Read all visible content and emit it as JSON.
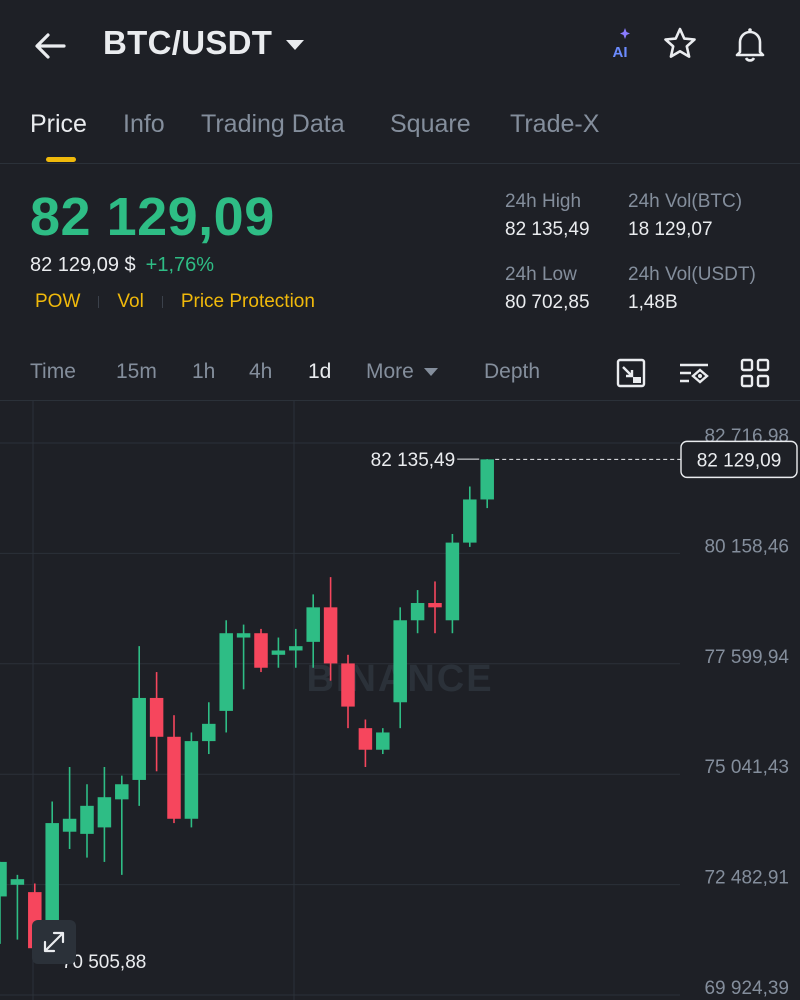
{
  "header": {
    "pair": "BTC/USDT",
    "ai_label": "AI"
  },
  "tabs": [
    "Price",
    "Info",
    "Trading Data",
    "Square",
    "Trade-X"
  ],
  "price": {
    "last": "82 129,09",
    "usd": "82 129,09 $",
    "change": "+1,76%"
  },
  "badges": [
    "POW",
    "Vol",
    "Price Protection"
  ],
  "stats": {
    "high_label": "24h High",
    "high_value": "82 135,49",
    "vol_btc_label": "24h Vol(BTC)",
    "vol_btc_value": "18 129,07",
    "low_label": "24h Low",
    "low_value": "80 702,85",
    "vol_usdt_label": "24h Vol(USDT)",
    "vol_usdt_value": "1,48B"
  },
  "intervals": {
    "items": [
      "Time",
      "15m",
      "1h",
      "4h",
      "1d",
      "More",
      "Depth"
    ],
    "active": "1d"
  },
  "colors": {
    "up": "#2ebd85",
    "down": "#f6465d",
    "accent": "#f0b90b",
    "bg": "#1e2026"
  },
  "chart_data": {
    "type": "candlestick",
    "watermark": "BINANCE",
    "y_ticks": [
      {
        "value": 82716.98,
        "label": "82 716,98"
      },
      {
        "value": 80158.46,
        "label": "80 158,46"
      },
      {
        "value": 77599.94,
        "label": "77 599,94"
      },
      {
        "value": 75041.43,
        "label": "75 041,43"
      },
      {
        "value": 72482.91,
        "label": "72 482,91"
      },
      {
        "value": 69924.39,
        "label": "69 924,39"
      }
    ],
    "ylim": [
      69924.39,
      82716.98
    ],
    "current_price": {
      "value": 82129.09,
      "label": "82 129,09"
    },
    "max_marker": {
      "value": 82135.49,
      "label": "82 135,49"
    },
    "min_marker": {
      "value": 70505.88,
      "label": "70 505,88"
    },
    "candles": [
      {
        "o": 72000,
        "h": 72800,
        "l": 70900,
        "c": 72800
      },
      {
        "o": 72270,
        "h": 72500,
        "l": 71000,
        "c": 72400
      },
      {
        "o": 72100,
        "h": 72300,
        "l": 70505.88,
        "c": 70800
      },
      {
        "o": 70800,
        "h": 74200,
        "l": 70600,
        "c": 73700
      },
      {
        "o": 73500,
        "h": 75000,
        "l": 73100,
        "c": 73800
      },
      {
        "o": 73450,
        "h": 74600,
        "l": 72900,
        "c": 74100
      },
      {
        "o": 73600,
        "h": 75000,
        "l": 72800,
        "c": 74300
      },
      {
        "o": 74250,
        "h": 74800,
        "l": 72500,
        "c": 74600
      },
      {
        "o": 74700,
        "h": 77800,
        "l": 74100,
        "c": 76600
      },
      {
        "o": 76600,
        "h": 77200,
        "l": 74900,
        "c": 75700
      },
      {
        "o": 75700,
        "h": 76200,
        "l": 73700,
        "c": 73800
      },
      {
        "o": 73800,
        "h": 75800,
        "l": 73600,
        "c": 75600
      },
      {
        "o": 75600,
        "h": 76500,
        "l": 75300,
        "c": 76000
      },
      {
        "o": 76300,
        "h": 78400,
        "l": 75800,
        "c": 78100
      },
      {
        "o": 78000,
        "h": 78300,
        "l": 76800,
        "c": 78100
      },
      {
        "o": 78100,
        "h": 78200,
        "l": 77200,
        "c": 77300
      },
      {
        "o": 77600,
        "h": 78000,
        "l": 77300,
        "c": 77700
      },
      {
        "o": 77700,
        "h": 78200,
        "l": 77300,
        "c": 77800
      },
      {
        "o": 77900,
        "h": 79000,
        "l": 77300,
        "c": 78700
      },
      {
        "o": 78700,
        "h": 79400,
        "l": 77000,
        "c": 77400
      },
      {
        "o": 77400,
        "h": 77600,
        "l": 75900,
        "c": 76400
      },
      {
        "o": 75900,
        "h": 76100,
        "l": 75000,
        "c": 75400
      },
      {
        "o": 75400,
        "h": 75900,
        "l": 75300,
        "c": 75800
      },
      {
        "o": 76500,
        "h": 78700,
        "l": 75900,
        "c": 78400
      },
      {
        "o": 78400,
        "h": 79100,
        "l": 78100,
        "c": 78800
      },
      {
        "o": 78800,
        "h": 79300,
        "l": 78100,
        "c": 78700
      },
      {
        "o": 78400,
        "h": 80400,
        "l": 78100,
        "c": 80200
      },
      {
        "o": 80200,
        "h": 81500,
        "l": 80100,
        "c": 81200
      },
      {
        "o": 81200,
        "h": 82135.49,
        "l": 81000,
        "c": 82129.09
      }
    ]
  }
}
